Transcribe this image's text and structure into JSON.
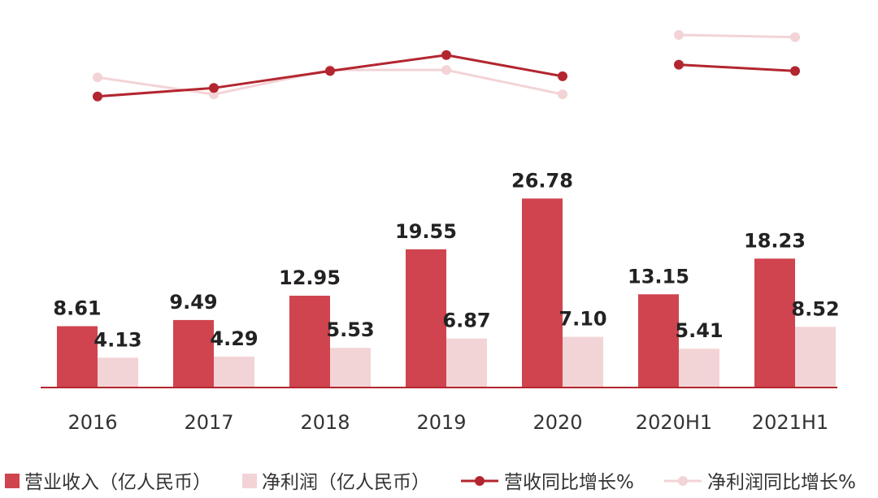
{
  "chart_data": {
    "type": "bar",
    "title": "",
    "xlabel": "",
    "ylabel": "",
    "categories": [
      "2016",
      "2017",
      "2018",
      "2019",
      "2020",
      "2020H1",
      "2021H1"
    ],
    "series": [
      {
        "name": "营业收入（亿人民币）",
        "kind": "bar",
        "color": "#cf444f",
        "values": [
          8.61,
          9.49,
          12.95,
          19.55,
          26.78,
          13.15,
          18.23
        ],
        "labels": [
          "8.61",
          "9.49",
          "12.95",
          "19.55",
          "26.78",
          "13.15",
          "18.23"
        ]
      },
      {
        "name": "净利润（亿人民币）",
        "kind": "bar",
        "color": "#f3d4d6",
        "values": [
          4.13,
          4.29,
          5.53,
          6.87,
          7.1,
          5.41,
          8.52
        ],
        "labels": [
          "4.13",
          "4.29",
          "5.53",
          "6.87",
          "7.10",
          "5.41",
          "8.52"
        ]
      },
      {
        "name": "营收同比增长%",
        "kind": "line",
        "color": "#b3262f",
        "values": [
          12,
          20,
          36,
          51,
          31,
          42,
          36
        ],
        "segments": [
          [
            0,
            4
          ],
          [
            5,
            6
          ]
        ]
      },
      {
        "name": "净利润同比增长%",
        "kind": "line",
        "color": "#f3d4d6",
        "values": [
          30,
          14,
          37,
          37,
          14,
          70,
          68
        ],
        "segments": [
          [
            0,
            4
          ],
          [
            5,
            6
          ]
        ]
      }
    ],
    "bar_ylim": [
      0,
      32
    ],
    "line_ylim": [
      -150,
      80
    ],
    "grid": false,
    "legend_position": "bottom"
  }
}
